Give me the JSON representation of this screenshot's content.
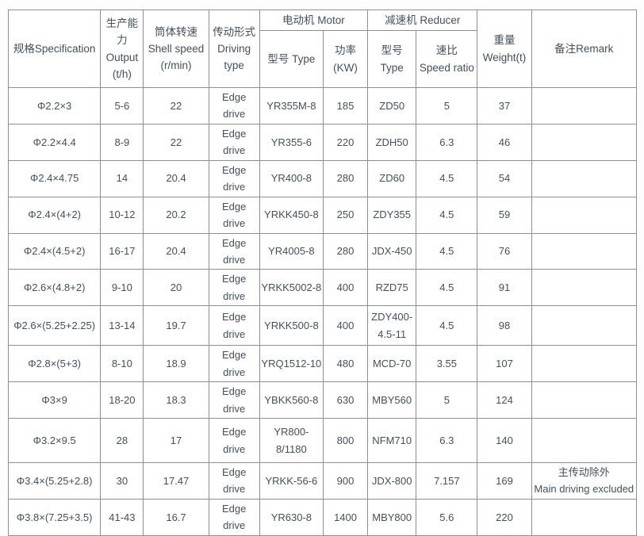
{
  "colors": {
    "text": "#44505c",
    "border": "#8f8f8f",
    "outer_border": "#767676",
    "background": "#ffffff"
  },
  "table": {
    "header": {
      "spec": "规格Specification",
      "output": "生产能\n力\nOutput\n(t/h)",
      "shell_speed": "筒体转速\nShell speed\n(r/min)",
      "driving": "传动形式\nDriving\ntype",
      "motor_group": "电动机 Motor",
      "reducer_group": "减速机 Reducer",
      "motor_type": "型号 Type",
      "motor_power": "功率\n(KW)",
      "reducer_type": "型号\nType",
      "speed_ratio": "速比\nSpeed ratio",
      "weight": "重量\nWeight(t)",
      "remark": "备注Remark"
    },
    "rows": [
      {
        "spec": "Φ2.2×3",
        "output": "5-6",
        "shell_speed": "22",
        "driving": "Edge drive",
        "motor_type": "YR355M-8",
        "motor_power": "185",
        "reducer_type": "ZD50",
        "speed_ratio": "5",
        "weight": "37",
        "remark": ""
      },
      {
        "spec": "Φ2.2×4.4",
        "output": "8-9",
        "shell_speed": "22",
        "driving": "Edge drive",
        "motor_type": "YR355-6",
        "motor_power": "220",
        "reducer_type": "ZDH50",
        "speed_ratio": "6.3",
        "weight": "46",
        "remark": ""
      },
      {
        "spec": "Φ2.4×4.75",
        "output": "14",
        "shell_speed": "20.4",
        "driving": "Edge drive",
        "motor_type": "YR400-8",
        "motor_power": "280",
        "reducer_type": "ZD60",
        "speed_ratio": "4.5",
        "weight": "54",
        "remark": ""
      },
      {
        "spec": "Φ2.4×(4+2)",
        "output": "10-12",
        "shell_speed": "20.2",
        "driving": "Edge drive",
        "motor_type": "YRKK450-8",
        "motor_power": "250",
        "reducer_type": "ZDY355",
        "speed_ratio": "4.5",
        "weight": "59",
        "remark": ""
      },
      {
        "spec": "Φ2.4×(4.5+2)",
        "output": "16-17",
        "shell_speed": "20.4",
        "driving": "Edge drive",
        "motor_type": "YR4005-8",
        "motor_power": "280",
        "reducer_type": "JDX-450",
        "speed_ratio": "4.5",
        "weight": "76",
        "remark": ""
      },
      {
        "spec": "Φ2.6×(4.8+2)",
        "output": "9-10",
        "shell_speed": "20",
        "driving": "Edge drive",
        "motor_type": "YRKK5002-8",
        "motor_power": "400",
        "reducer_type": "RZD75",
        "speed_ratio": "4.5",
        "weight": "91",
        "remark": ""
      },
      {
        "spec": "Φ2.6×(5.25+2.25)",
        "output": "13-14",
        "shell_speed": "19.7",
        "driving": "Edge drive",
        "motor_type": "YRKK500-8",
        "motor_power": "400",
        "reducer_type": "ZDY400-\n4.5-11",
        "speed_ratio": "4.5",
        "weight": "98",
        "remark": ""
      },
      {
        "spec": "Φ2.8×(5+3)",
        "output": "8-10",
        "shell_speed": "18.9",
        "driving": "Edge drive",
        "motor_type": "YRQ1512-10",
        "motor_power": "480",
        "reducer_type": "MCD-70",
        "speed_ratio": "3.55",
        "weight": "107",
        "remark": ""
      },
      {
        "spec": "Φ3×9",
        "output": "18-20",
        "shell_speed": "18.3",
        "driving": "Edge drive",
        "motor_type": "YBKK560-8",
        "motor_power": "630",
        "reducer_type": "MBY560",
        "speed_ratio": "5",
        "weight": "124",
        "remark": ""
      },
      {
        "spec": "Φ3.2×9.5",
        "output": "28",
        "shell_speed": "17",
        "driving": "Edge drive",
        "motor_type": "YR800-\n8/1180",
        "motor_power": "800",
        "reducer_type": "NFM710",
        "speed_ratio": "6.3",
        "weight": "140",
        "remark": ""
      },
      {
        "spec": "Φ3.4×(5.25+2.8)",
        "output": "30",
        "shell_speed": "17.47",
        "driving": "Edge drive",
        "motor_type": "YRKK-56-6",
        "motor_power": "900",
        "reducer_type": "JDX-800",
        "speed_ratio": "7.157",
        "weight": "169",
        "remark": "主传动除外\nMain driving excluded"
      },
      {
        "spec": "Φ3.8×(7.25+3.5)",
        "output": "41-43",
        "shell_speed": "16.7",
        "driving": "Edge drive",
        "motor_type": "YR630-8",
        "motor_power": "1400",
        "reducer_type": "MBY800",
        "speed_ratio": "5.6",
        "weight": "220",
        "remark": ""
      }
    ]
  }
}
